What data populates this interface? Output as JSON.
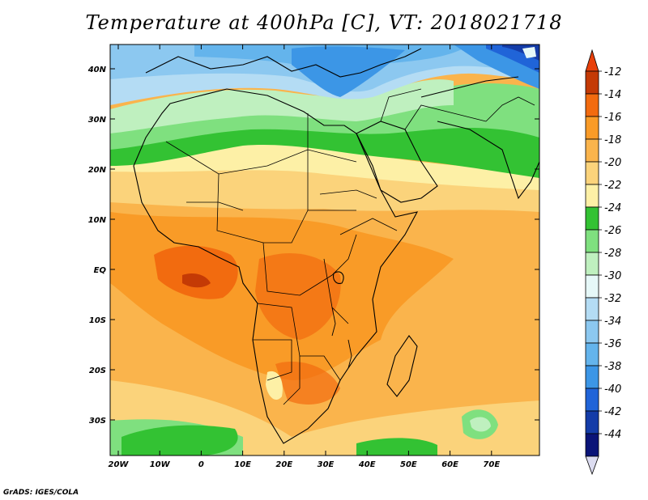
{
  "title": "Temperature at 400hPa [C], VT: 2018021718",
  "credit": "GrADS: IGES/COLA",
  "lat_ticks": [
    "40N",
    "30N",
    "20N",
    "10N",
    "EQ",
    "10S",
    "20S",
    "30S"
  ],
  "lon_ticks": [
    "20W",
    "10W",
    "0",
    "10E",
    "20E",
    "30E",
    "40E",
    "50E",
    "60E",
    "70E"
  ],
  "colorbar": {
    "labels": [
      "-12",
      "-14",
      "-16",
      "-18",
      "-20",
      "-22",
      "-24",
      "-26",
      "-28",
      "-30",
      "-32",
      "-34",
      "-36",
      "-38",
      "-40",
      "-42",
      "-44"
    ],
    "colors": [
      "#c43a05",
      "#f26b0f",
      "#f99b27",
      "#fab44c",
      "#fbd37b",
      "#fdf0a6",
      "#33c233",
      "#7fe07f",
      "#bff0bf",
      "#e6f8f8",
      "#b4dcf4",
      "#8cc8f0",
      "#64b4ec",
      "#3c96e6",
      "#2064d8",
      "#143ca8",
      "#0a1478"
    ],
    "arrow_top_color": "#e8400a",
    "arrow_bottom_color": "#dcdcf0"
  }
}
